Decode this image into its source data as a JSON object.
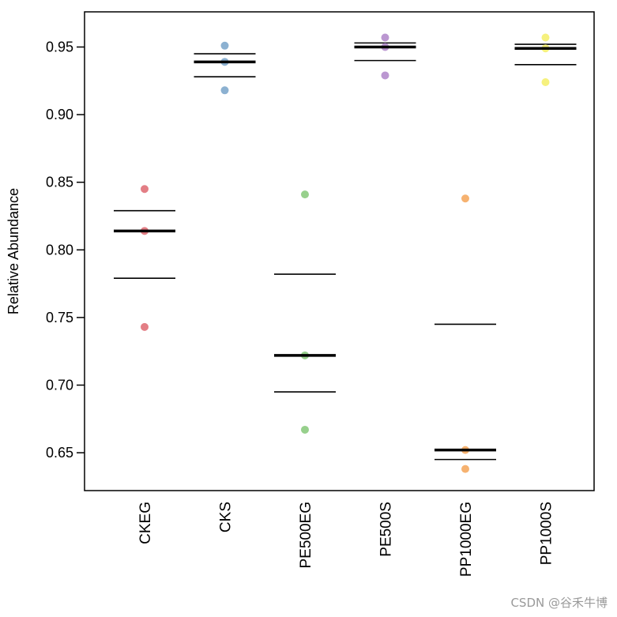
{
  "chart_data": {
    "type": "scatter",
    "title": "",
    "xlabel": "",
    "ylabel": "Relative Abundance",
    "ylim": [
      0.622,
      0.976
    ],
    "yticks": [
      0.65,
      0.7,
      0.75,
      0.8,
      0.85,
      0.9,
      0.95
    ],
    "ytick_labels": [
      "0.65",
      "0.70",
      "0.75",
      "0.80",
      "0.85",
      "0.90",
      "0.95"
    ],
    "categories": [
      "CKEG",
      "CKS",
      "PE500EG",
      "PE500S",
      "PP1000EG",
      "PP1000S"
    ],
    "groups": [
      {
        "name": "CKEG",
        "color": "#E07078",
        "points": [
          0.845,
          0.814,
          0.743
        ],
        "median": 0.814,
        "upper": 0.829,
        "lower": 0.779
      },
      {
        "name": "CKS",
        "color": "#80A8CC",
        "points": [
          0.951,
          0.939,
          0.918
        ],
        "median": 0.939,
        "upper": 0.945,
        "lower": 0.928
      },
      {
        "name": "PE500EG",
        "color": "#8CCB80",
        "points": [
          0.841,
          0.722,
          0.667
        ],
        "median": 0.722,
        "upper": 0.782,
        "lower": 0.695
      },
      {
        "name": "PE500S",
        "color": "#B48CCC",
        "points": [
          0.957,
          0.95,
          0.929
        ],
        "median": 0.95,
        "upper": 0.953,
        "lower": 0.94
      },
      {
        "name": "PP1000EG",
        "color": "#F5AA60",
        "points": [
          0.838,
          0.652,
          0.638
        ],
        "median": 0.652,
        "upper": 0.745,
        "lower": 0.645
      },
      {
        "name": "PP1000S",
        "color": "#F5F070",
        "points": [
          0.957,
          0.949,
          0.924
        ],
        "median": 0.949,
        "upper": 0.952,
        "lower": 0.937
      }
    ]
  },
  "watermark": "CSDN @谷禾牛博"
}
